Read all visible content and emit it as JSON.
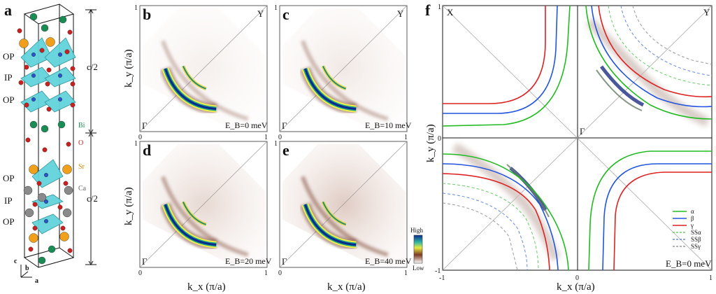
{
  "panel_labels": {
    "a": "a",
    "b": "b",
    "c": "c",
    "d": "d",
    "e": "e",
    "f": "f"
  },
  "crystal": {
    "layer_labels_top": [
      "OP",
      "IP",
      "OP"
    ],
    "layer_labels_bottom": [
      "OP",
      "IP",
      "OP"
    ],
    "half_c_top": "c/2",
    "half_c_bottom": "c/2",
    "atoms": [
      "Bi",
      "O",
      "Sr",
      "Ca"
    ],
    "axes": {
      "c": "c",
      "b": "b",
      "a": "a"
    },
    "atom_colors": {
      "Bi": "#1a8c55",
      "O": "#cc1f1f",
      "Sr": "#f0a01a",
      "Ca": "#8a8a8a",
      "Cu": "#2a55cc",
      "polyhedra": "#63d3dc"
    }
  },
  "maps": {
    "panels": [
      {
        "id": "b",
        "energy": "E_B=0 meV",
        "corner_gamma": "Γ",
        "corner_y": "Y",
        "tick_left": "0",
        "tick_right": "1",
        "tick_top": "1"
      },
      {
        "id": "c",
        "energy": "E_B=10 meV",
        "corner_gamma": "Γ",
        "corner_y": "Y",
        "tick_left": "0",
        "tick_right": "1",
        "tick_top": "1"
      },
      {
        "id": "d",
        "energy": "E_B=20 meV",
        "corner_gamma": "Γ",
        "corner_y": "",
        "tick_left": "0",
        "tick_right": "1",
        "tick_top": "1"
      },
      {
        "id": "e",
        "energy": "E_B=40 meV",
        "corner_gamma": "Γ",
        "corner_y": "",
        "tick_left": "0",
        "tick_right": "1",
        "tick_top": "1"
      }
    ],
    "ylabel": "k_y (π/a)",
    "xlabel": "k_x (π/a)",
    "colorbar": {
      "high": "High",
      "low": "Low"
    }
  },
  "fermi_surface": {
    "corner_x": "X",
    "corner_y": "Y",
    "gamma": "Γ",
    "energy": "E_B=0 meV",
    "xlabel": "k_x (π/a)",
    "ylabel": "k_y (π/a)",
    "ticks_x": [
      "-1",
      "0",
      "1"
    ],
    "ticks_y": [
      "1",
      "0",
      "-1"
    ],
    "legend": [
      {
        "name": "α",
        "color": "#22bb22",
        "style": "solid"
      },
      {
        "name": "β",
        "color": "#2255dd",
        "style": "solid"
      },
      {
        "name": "γ",
        "color": "#dd2222",
        "style": "solid"
      },
      {
        "name": "SSα",
        "color": "#66cc66",
        "style": "dashed"
      },
      {
        "name": "SSβ",
        "color": "#6688dd",
        "style": "dashed"
      },
      {
        "name": "SSγ",
        "color": "#999999",
        "style": "dashed"
      }
    ]
  }
}
